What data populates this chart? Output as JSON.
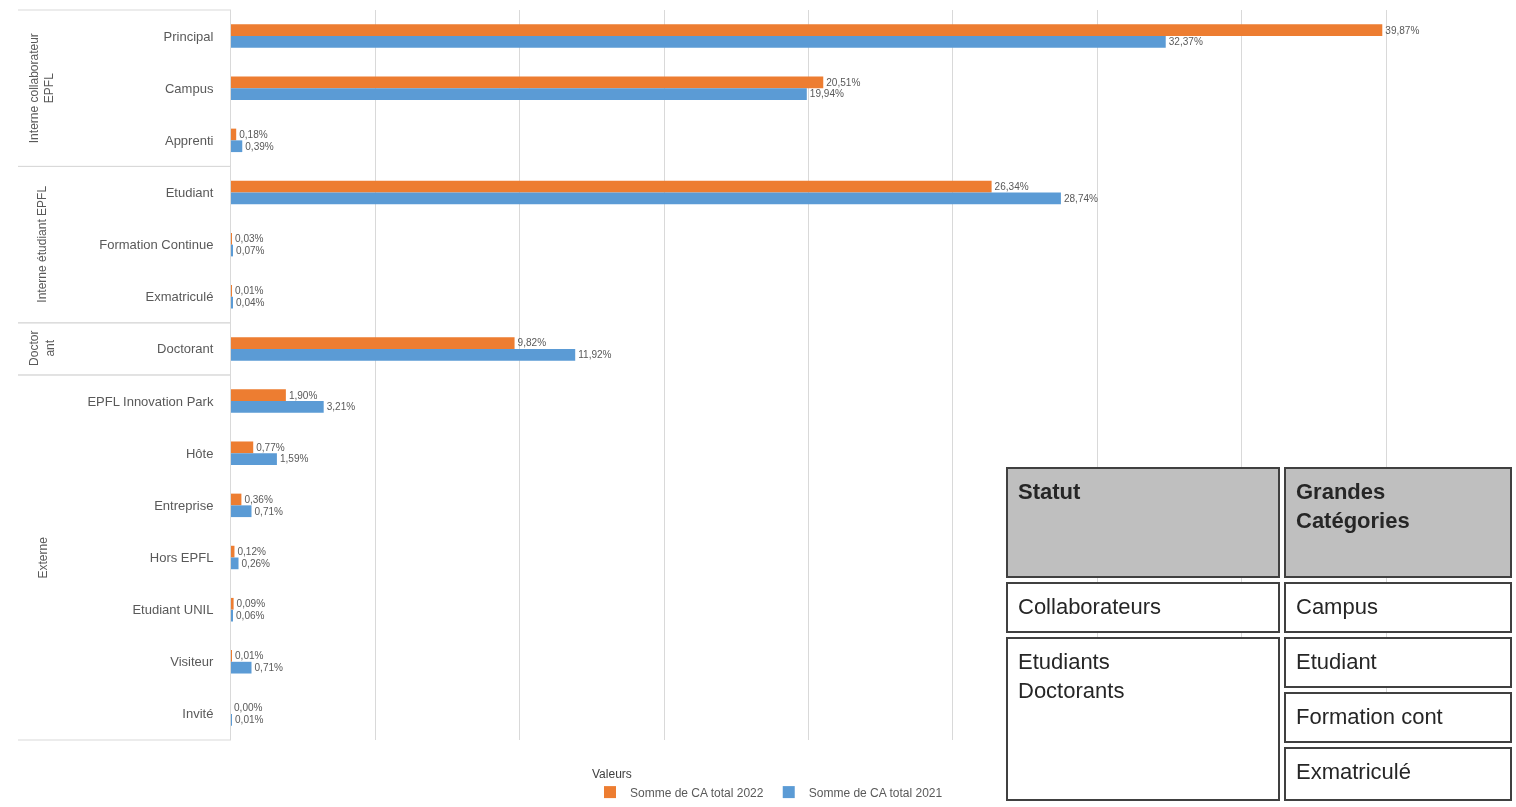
{
  "chart_data": {
    "type": "bar",
    "orientation": "horizontal",
    "categories": [
      "Principal",
      "Campus",
      "Apprenti",
      "Etudiant",
      "Formation Continue",
      "Exmatriculé",
      "Doctorant",
      "EPFL Innovation Park",
      "Hôte",
      "Entreprise",
      "Hors EPFL",
      "Etudiant UNIL",
      "Visiteur",
      "Invité"
    ],
    "series": [
      {
        "name": "Somme de CA total 2022",
        "color": "#ed7d31",
        "values": [
          39.87,
          20.51,
          0.18,
          26.34,
          0.03,
          0.01,
          9.82,
          1.9,
          0.77,
          0.36,
          0.12,
          0.09,
          0.01,
          0.0
        ],
        "value_labels": [
          "39,87%",
          "20,51%",
          "0,18%",
          "26,34%",
          "0,03%",
          "0,01%",
          "9,82%",
          "1,90%",
          "0,77%",
          "0,36%",
          "0,12%",
          "0,09%",
          "0,01%",
          "0,00%"
        ]
      },
      {
        "name": "Somme de CA total 2021",
        "color": "#5b9bd5",
        "values": [
          32.37,
          19.94,
          0.39,
          28.74,
          0.07,
          0.04,
          11.92,
          3.21,
          1.59,
          0.71,
          0.26,
          0.06,
          0.71,
          0.01
        ],
        "value_labels": [
          "32,37%",
          "19,94%",
          "0,39%",
          "28,74%",
          "0,07%",
          "0,04%",
          "11,92%",
          "3,21%",
          "1,59%",
          "0,71%",
          "0,26%",
          "0,06%",
          "0,71%",
          "0,01%"
        ]
      }
    ],
    "xlim": [
      0,
      44.5
    ],
    "xticks": [
      {
        "value": 5,
        "label": null
      },
      {
        "value": 10,
        "label": null
      },
      {
        "value": 15,
        "label": null
      },
      {
        "value": 20,
        "label": null
      },
      {
        "value": 25,
        "label": null
      },
      {
        "value": 30,
        "label": null
      },
      {
        "value": 35,
        "label": null
      },
      {
        "value": 40,
        "label": null
      }
    ],
    "tick_labels": "y",
    "grid": "x",
    "legend": "bottom",
    "legend_title": "Valeurs",
    "annotations": [
      "Interne collaborateur\nEPFL",
      "Interne étudiant EPFL",
      "Doctor\nant",
      "Externe",
      "Statut",
      "Grandes\nCatégories",
      "Collaborateurs",
      "Campus",
      "Etudiants\nDoctorants",
      "Etudiant",
      "Formation cont",
      "Exmatriculé"
    ]
  }
}
